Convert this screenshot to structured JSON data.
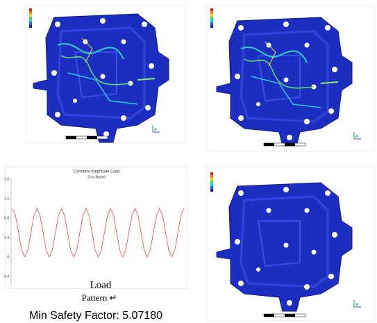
{
  "chart_data": {
    "type": "line",
    "title": "Constant Amplitude Load",
    "subtitle": "Zero-Based",
    "x": [
      0,
      0.125,
      0.25,
      0.375,
      0.5,
      0.625,
      0.75,
      0.875,
      1,
      1.125,
      1.25,
      1.375,
      1.5,
      1.625,
      1.75,
      1.875,
      2,
      2.125,
      2.25,
      2.375,
      2.5,
      2.625,
      2.75,
      2.875,
      3,
      3.125,
      3.25,
      3.375,
      3.5,
      3.625,
      3.75,
      3.875,
      4,
      4.125,
      4.25,
      4.375,
      4.5,
      4.625,
      4.75,
      4.875,
      5,
      5.125,
      5.25,
      5.375,
      5.5,
      5.625,
      5.75,
      5.875,
      6,
      6.125,
      6.25,
      6.375,
      6.5,
      6.625,
      6.75,
      6.875,
      7
    ],
    "series": [
      {
        "color": "#e34848",
        "values": [
          1,
          0.854,
          0.5,
          0.146,
          0,
          0.146,
          0.5,
          0.854,
          1,
          0.854,
          0.5,
          0.146,
          0,
          0.146,
          0.5,
          0.854,
          1,
          0.854,
          0.5,
          0.146,
          0,
          0.146,
          0.5,
          0.854,
          1,
          0.854,
          0.5,
          0.146,
          0,
          0.146,
          0.5,
          0.854,
          1,
          0.854,
          0.5,
          0.146,
          0,
          0.146,
          0.5,
          0.854,
          1,
          0.854,
          0.5,
          0.146,
          0,
          0.146,
          0.5,
          0.854,
          1,
          0.854,
          0.5,
          0.146,
          0,
          0.146,
          0.5,
          0.854,
          1
        ]
      }
    ],
    "xlim": [
      0,
      7
    ],
    "ylim": [
      -0.6,
      1.6
    ],
    "yticks": [
      1.6,
      1.2,
      0.8,
      0.4,
      0,
      -0.4
    ]
  },
  "captions": {
    "load": "Load",
    "pattern": "Pattern ↵",
    "safety": "Min Safety Factor: 5.07180"
  }
}
